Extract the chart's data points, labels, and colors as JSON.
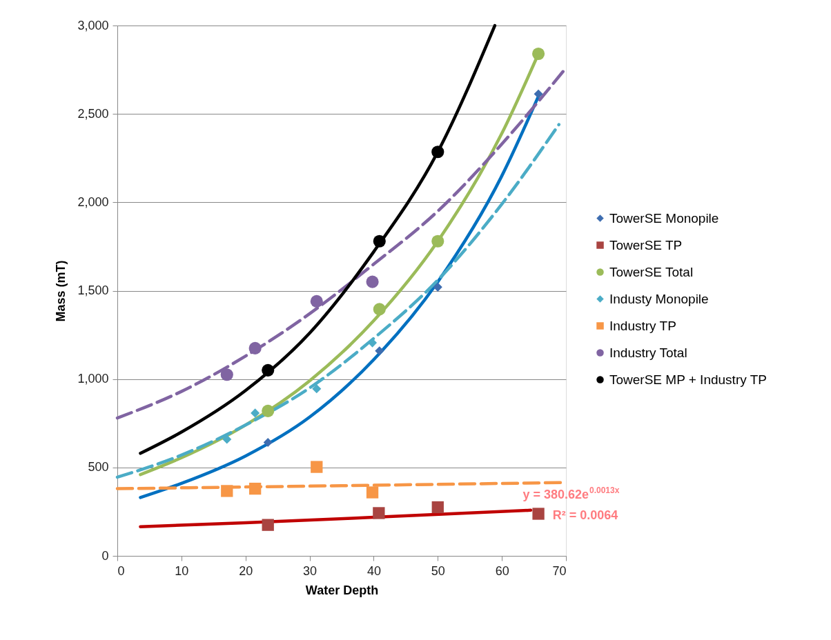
{
  "chart_data": {
    "type": "scatter",
    "xlabel": "Water Depth",
    "ylabel": "Mass (mT)",
    "xlim": [
      0,
      70
    ],
    "xticks": [
      0,
      10,
      20,
      30,
      40,
      50,
      60,
      70
    ],
    "ylim": [
      0,
      3000
    ],
    "yticks": [
      {
        "value": 0,
        "label": "0"
      },
      {
        "value": 500,
        "label": "500"
      },
      {
        "value": 1000,
        "label": "1,000"
      },
      {
        "value": 1500,
        "label": "1,500"
      },
      {
        "value": 2000,
        "label": "2,000"
      },
      {
        "value": 2500,
        "label": "2,500"
      },
      {
        "value": 3000,
        "label": "3,000"
      }
    ],
    "grid": "y",
    "legend": "right",
    "annotations": [
      "y = 380.62e$^{0.0013x}$",
      "R² = 0.0064"
    ],
    "series": [
      {
        "name": "TowerSE Monopile",
        "marker": "diamond",
        "color": "#3e6db0",
        "x": [
          23.5,
          40.9,
          50,
          65.7
        ],
        "values": [
          642,
          1160,
          1520,
          2613
        ]
      },
      {
        "name": "TowerSE TP",
        "marker": "square",
        "color": "#a94441",
        "x": [
          23.5,
          40.8,
          50,
          65.7
        ],
        "values": [
          175,
          242,
          275,
          238
        ]
      },
      {
        "name": "TowerSE Total",
        "marker": "circle",
        "color": "#9bbb59",
        "x": [
          23.5,
          40.9,
          50,
          65.7
        ],
        "values": [
          820,
          1395,
          1780,
          2840
        ]
      },
      {
        "name": "Industy Monopile",
        "marker": "diamond",
        "color": "#4bacc6",
        "x": [
          17.1,
          21.5,
          31.1,
          39.8
        ],
        "values": [
          659,
          808,
          945,
          1205
        ]
      },
      {
        "name": "Industry TP",
        "marker": "square",
        "color": "#f79646",
        "x": [
          17.1,
          21.5,
          31.1,
          39.8
        ],
        "values": [
          367,
          380,
          503,
          359
        ]
      },
      {
        "name": "Industry Total",
        "marker": "circle",
        "color": "#8064a2",
        "x": [
          17.1,
          21.5,
          31.1,
          39.8
        ],
        "values": [
          1025,
          1175,
          1440,
          1550
        ]
      },
      {
        "name": "TowerSE MP + Industry TP",
        "marker": "circle",
        "color": "#000000",
        "x": [
          23.5,
          40.9,
          50
        ],
        "values": [
          1050,
          1780,
          2285
        ]
      },
      {
        "type": "line",
        "marker": "none",
        "line_style": "solid",
        "color": "#0070c0",
        "x": [
          3.6,
          10,
          20,
          30,
          40,
          50,
          60,
          65.7
        ],
        "values": [
          330,
          410,
          565,
          785,
          1110,
          1550,
          2150,
          2600
        ]
      },
      {
        "type": "line",
        "marker": "none",
        "line_style": "solid",
        "color": "#c00000",
        "x": [
          3.6,
          20,
          40,
          64.5
        ],
        "values": [
          165,
          187,
          218,
          258
        ]
      },
      {
        "type": "line",
        "marker": "none",
        "line_style": "solid",
        "color": "#9bbb59",
        "x": [
          3.6,
          10,
          20,
          30,
          40,
          50,
          60,
          65.7
        ],
        "values": [
          460,
          555,
          740,
          990,
          1330,
          1780,
          2390,
          2840
        ]
      },
      {
        "type": "line",
        "marker": "none",
        "line_style": "dashed",
        "color": "#4bacc6",
        "x": [
          0,
          10,
          20,
          30,
          40,
          50,
          60,
          68.9
        ],
        "values": [
          445,
          570,
          740,
          950,
          1230,
          1560,
          1990,
          2440
        ]
      },
      {
        "type": "line",
        "marker": "none",
        "line_style": "dashed",
        "color": "#f79646",
        "x": [
          0,
          35,
          70
        ],
        "values": [
          380,
          397,
          415
        ]
      },
      {
        "type": "line",
        "marker": "none",
        "line_style": "dashed",
        "color": "#8064a2",
        "x": [
          0,
          10,
          20,
          30,
          40,
          50,
          60,
          70
        ],
        "values": [
          780,
          930,
          1130,
          1370,
          1650,
          1950,
          2330,
          2760
        ]
      },
      {
        "type": "line",
        "marker": "none",
        "line_style": "solid",
        "color": "#000000",
        "x": [
          3.6,
          10,
          20,
          30,
          40,
          50,
          58.9
        ],
        "values": [
          580,
          700,
          935,
          1260,
          1720,
          2285,
          3000
        ]
      }
    ]
  }
}
